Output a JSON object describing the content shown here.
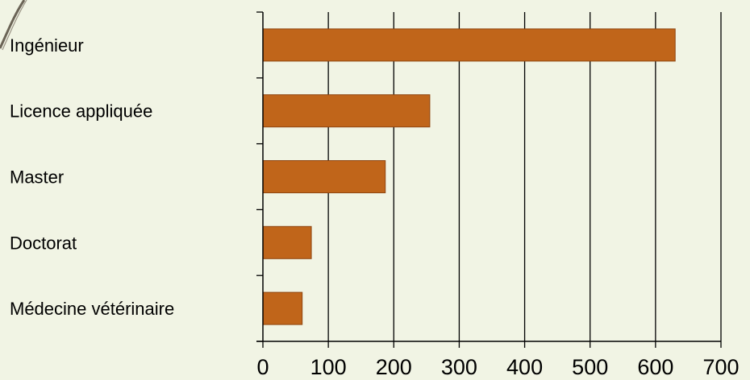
{
  "chart_data": {
    "type": "bar",
    "orientation": "horizontal",
    "categories": [
      "Ingénieur",
      "Licence appliquée",
      "Master",
      "Doctorat",
      "Médecine vétérinaire"
    ],
    "values": [
      630,
      255,
      187,
      74,
      60
    ],
    "xlim": [
      0,
      700
    ],
    "xticks": [
      0,
      100,
      200,
      300,
      400,
      500,
      600,
      700
    ],
    "grid": "vertical",
    "bar_color": "#c0651a",
    "bar_border_color": "#8e4510",
    "title": "",
    "xlabel": "",
    "ylabel": ""
  },
  "colors": {
    "background": "#f1f4e4",
    "decor_stroke": "#6b6456",
    "axis": "#000000",
    "text": "#000000"
  }
}
